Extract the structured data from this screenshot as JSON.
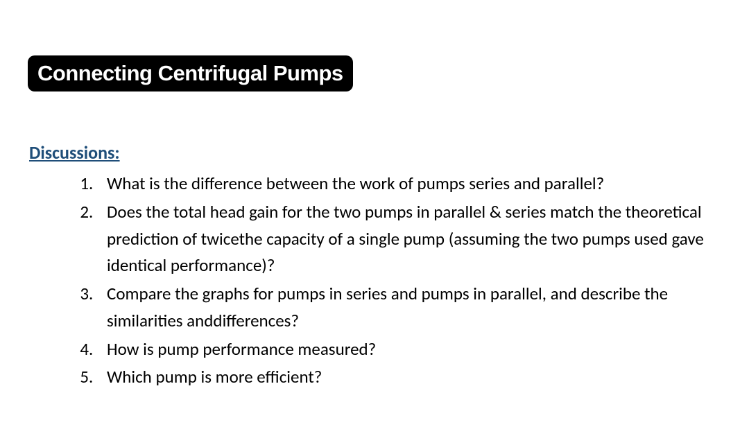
{
  "title": "Connecting Centrifugal Pumps",
  "section_heading": "Discussions:",
  "questions": [
    "What is the difference between the work of pumps series and parallel?",
    "Does the total head gain for the two pumps in parallel & series match the theoretical prediction of twicethe capacity of a single pump (assuming the two pumps used gave identical performance)?",
    "Compare the graphs for pumps in series and pumps in parallel, and describe the similarities anddifferences?",
    "How is pump performance measured?",
    "Which pump is more efficient?"
  ],
  "colors": {
    "title_bg": "#000000",
    "title_text": "#ffffff",
    "heading_text": "#1f4e79",
    "body_text": "#000000",
    "page_bg": "#ffffff"
  },
  "typography": {
    "title_fontsize": 31,
    "heading_fontsize": 26,
    "body_fontsize": 25
  }
}
